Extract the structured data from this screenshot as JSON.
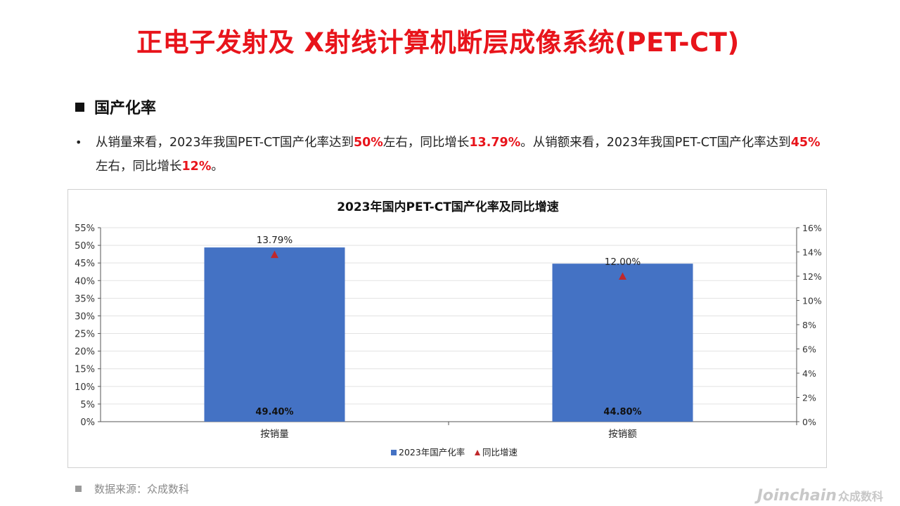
{
  "page": {
    "title": "正电子发射及 X射线计算机断层成像系统(PET-CT)",
    "section_heading": "国产化率",
    "paragraph": [
      {
        "text": "从销量来看，2023年我国PET-CT国产化率达到",
        "hl": false
      },
      {
        "text": "50%",
        "hl": true
      },
      {
        "text": "左右，同比增长",
        "hl": false
      },
      {
        "text": "13.79%",
        "hl": true
      },
      {
        "text": "。从销额来看，2023年我国PET-CT国产化率达到",
        "hl": false
      },
      {
        "text": "45%",
        "hl": true
      },
      {
        "text": "左右，同比增长",
        "hl": false
      },
      {
        "text": "12%",
        "hl": true
      },
      {
        "text": "。",
        "hl": false
      }
    ],
    "bullet": "•",
    "source": "数据来源：众成数科",
    "watermark": {
      "brand": "Joinchain",
      "cn": "众成数科"
    }
  },
  "colors": {
    "title": "#e8141b",
    "highlight": "#e8141b",
    "bar": "#4472c4",
    "marker": "#c0282b"
  },
  "chart_data": {
    "type": "bar",
    "title": "2023年国内PET-CT国产化率及同比增速",
    "categories": [
      "按销量",
      "按销额"
    ],
    "series": [
      {
        "name": "2023年国产化率",
        "kind": "bar",
        "axis": "left",
        "values": [
          49.4,
          44.8
        ],
        "labels": [
          "49.40%",
          "44.80%"
        ]
      },
      {
        "name": "同比增速",
        "kind": "marker",
        "axis": "right",
        "values": [
          13.79,
          12.0
        ],
        "labels": [
          "13.79%",
          "12.00%"
        ]
      }
    ],
    "y_left": {
      "min": 0,
      "max": 55,
      "step": 5,
      "format": "%"
    },
    "y_right": {
      "min": 0,
      "max": 16,
      "step": 2,
      "format": "%"
    },
    "grid": true,
    "legend": "bottom"
  }
}
